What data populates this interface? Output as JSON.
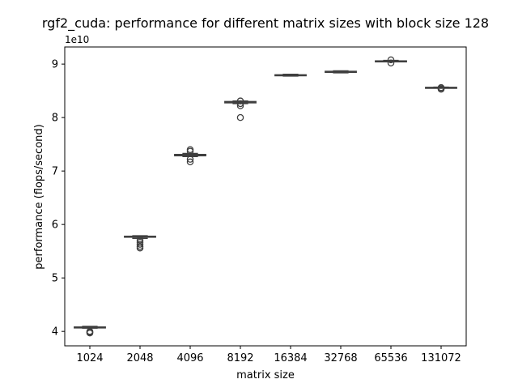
{
  "chart_data": {
    "type": "box",
    "title": "rgf2_cuda: performance for different matrix sizes with block size 128",
    "xlabel": "matrix size",
    "ylabel": "performance (flops/second)",
    "y_offset_label": "1e10",
    "y_scale": 10000000000,
    "ylim": [
      3.73,
      9.32
    ],
    "yticks": [
      4,
      5,
      6,
      7,
      8,
      9
    ],
    "grid": false,
    "box_color": "#3f3f3f",
    "categories": [
      "1024",
      "2048",
      "4096",
      "8192",
      "16384",
      "32768",
      "65536",
      "131072"
    ],
    "series": [
      {
        "boxes": [
          {
            "whislo": 4.06,
            "q1": 4.068,
            "med": 4.075,
            "q3": 4.083,
            "whishi": 4.095,
            "fliers": [
              3.97,
              3.98,
              3.99,
              4.0
            ]
          },
          {
            "whislo": 5.74,
            "q1": 5.765,
            "med": 5.77,
            "q3": 5.78,
            "whishi": 5.79,
            "fliers": [
              5.56,
              5.59,
              5.63,
              5.67,
              5.71
            ]
          },
          {
            "whislo": 7.27,
            "q1": 7.285,
            "med": 7.295,
            "q3": 7.31,
            "whishi": 7.33,
            "fliers": [
              7.17,
              7.22,
              7.37,
              7.4
            ]
          },
          {
            "whislo": 8.26,
            "q1": 8.275,
            "med": 8.285,
            "q3": 8.3,
            "whishi": 8.31,
            "fliers": [
              8.0,
              8.22,
              8.26,
              8.31
            ]
          },
          {
            "whislo": 8.775,
            "q1": 8.785,
            "med": 8.79,
            "q3": 8.8,
            "whishi": 8.81,
            "fliers": []
          },
          {
            "whislo": 8.835,
            "q1": 8.845,
            "med": 8.855,
            "q3": 8.865,
            "whishi": 8.875,
            "fliers": []
          },
          {
            "whislo": 9.045,
            "q1": 9.05,
            "med": 9.055,
            "q3": 9.06,
            "whishi": 9.07,
            "fliers": [
              9.02,
              9.08
            ]
          },
          {
            "whislo": 8.55,
            "q1": 8.555,
            "med": 8.56,
            "q3": 8.565,
            "whishi": 8.57,
            "fliers": [
              8.53,
              8.54,
              8.56
            ]
          }
        ]
      }
    ]
  }
}
